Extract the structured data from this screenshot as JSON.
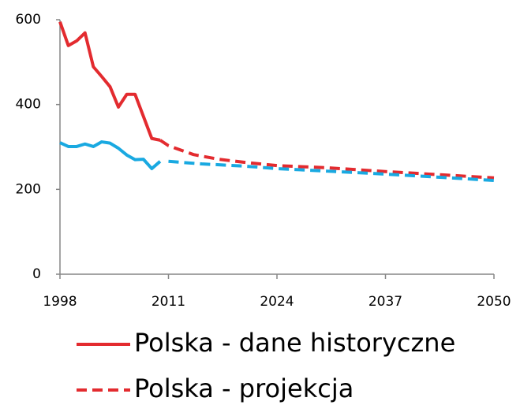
{
  "chart_data": {
    "type": "line",
    "xlim": [
      1998,
      2050
    ],
    "xticks": [
      1998,
      2011,
      2024,
      2037,
      2050
    ],
    "ylim": [
      0,
      600
    ],
    "yticks": [
      0,
      200,
      400,
      600
    ],
    "series": [
      {
        "name": "Polska - dane historyczne",
        "color": "#e32b2f",
        "dash": false,
        "x": [
          1998,
          1999,
          2000,
          2001,
          2002,
          2003,
          2004,
          2005,
          2006,
          2007,
          2008,
          2009,
          2010
        ],
        "values": [
          595,
          539,
          550,
          569,
          489,
          466,
          442,
          394,
          424,
          424,
          372,
          320,
          316
        ]
      },
      {
        "name": "Polska - projekcja",
        "color": "#e32b2f",
        "dash": true,
        "x": [
          2010,
          2011,
          2014,
          2017,
          2020,
          2024,
          2030,
          2037,
          2044,
          2050
        ],
        "values": [
          316,
          303,
          282,
          271,
          264,
          256,
          251,
          242,
          234,
          227
        ]
      },
      {
        "color": "#19a9e1",
        "dash": false,
        "x": [
          1998,
          1999,
          2000,
          2001,
          2002,
          2003,
          2004,
          2005,
          2006,
          2007,
          2008,
          2009,
          2010
        ],
        "values": [
          310,
          301,
          301,
          307,
          301,
          312,
          309,
          297,
          281,
          270,
          271,
          249,
          266
        ]
      },
      {
        "color": "#19a9e1",
        "dash": true,
        "x": [
          2011,
          2015,
          2020,
          2024,
          2030,
          2037,
          2044,
          2050
        ],
        "values": [
          266,
          260,
          255,
          249,
          243,
          236,
          228,
          221
        ]
      }
    ]
  }
}
